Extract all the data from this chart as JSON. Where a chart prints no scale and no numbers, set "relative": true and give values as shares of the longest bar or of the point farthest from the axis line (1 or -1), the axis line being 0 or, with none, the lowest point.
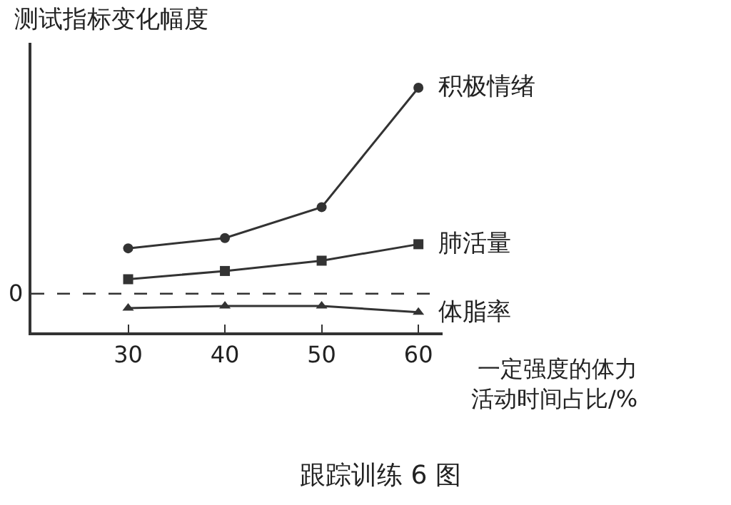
{
  "chart_data": {
    "type": "line",
    "relative": true,
    "ylabel": "测试指标变化幅度",
    "xlabel": "一定强度的体力活动时间占比/%",
    "annotations": [
      "跟踪训练 6 图"
    ],
    "x": [
      30,
      40,
      50,
      60
    ],
    "xlim": [
      20,
      62.5
    ],
    "xticks": [
      30,
      40,
      50,
      60
    ],
    "legend": false,
    "line_style": "solid",
    "ref_lines": [
      {
        "axis": "y",
        "value": 0,
        "label": "0",
        "line_style": "dashed",
        "color": "#333333"
      }
    ],
    "series": [
      {
        "name": "积极情绪",
        "color": "#333333",
        "marker": "circle",
        "values": [
          0.22,
          0.27,
          0.42,
          1
        ]
      },
      {
        "name": "肺活量",
        "color": "#333333",
        "marker": "square",
        "values": [
          0.07,
          0.11,
          0.16,
          0.24
        ]
      },
      {
        "name": "体脂率",
        "color": "#333333",
        "marker": "triangle",
        "values": [
          -0.07,
          -0.06,
          -0.06,
          -0.09
        ]
      }
    ]
  }
}
